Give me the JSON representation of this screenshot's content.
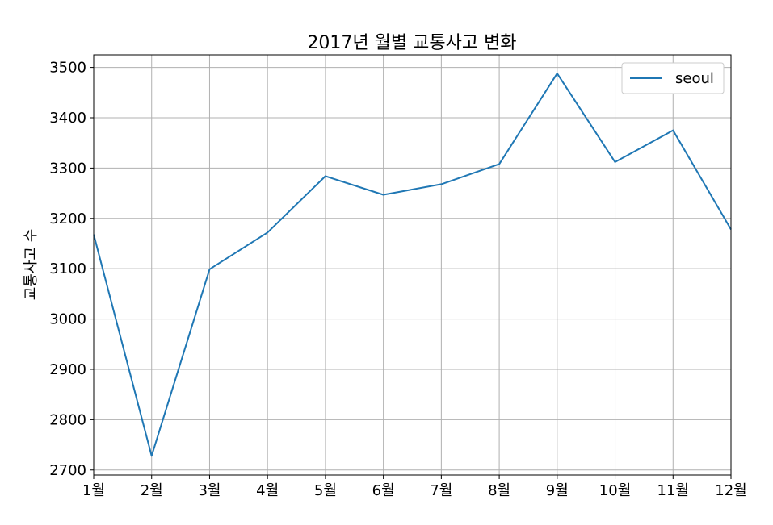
{
  "chart_data": {
    "type": "line",
    "title": "2017년 월별 교통사고 변화",
    "xlabel": "",
    "ylabel": "교통사고 수",
    "categories": [
      "1월",
      "2월",
      "3월",
      "4월",
      "5월",
      "6월",
      "7월",
      "8월",
      "9월",
      "10월",
      "11월",
      "12월"
    ],
    "series": [
      {
        "name": "seoul",
        "color": "#1f77b4",
        "values": [
          3168,
          2728,
          3099,
          3172,
          3284,
          3247,
          3268,
          3308,
          3488,
          3312,
          3375,
          3178
        ]
      }
    ],
    "yticks": [
      2700,
      2800,
      2900,
      3000,
      3100,
      3200,
      3300,
      3400,
      3500
    ],
    "ylim": [
      2690,
      3525
    ],
    "grid": true,
    "legend_position": "top-right"
  }
}
